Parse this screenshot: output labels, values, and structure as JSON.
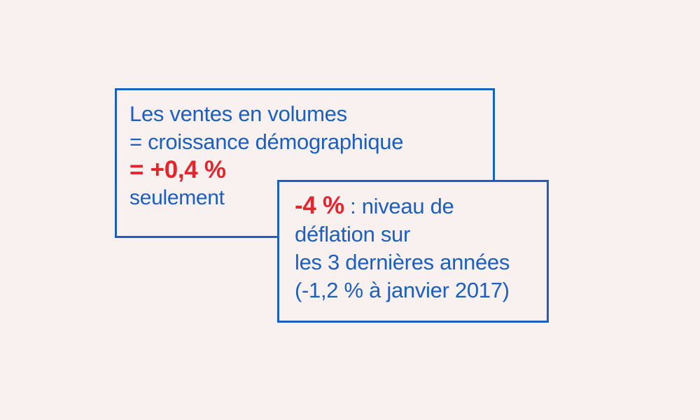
{
  "colors": {
    "background": "#f9f1f0",
    "accent_blue": "#1b5fc3",
    "highlight_red": "#e2262b"
  },
  "box_volumes": {
    "line1": "Les ventes en volumes",
    "line2": "= croissance démographique",
    "highlight": "= +0,4 %",
    "line4": "seulement"
  },
  "box_deflation": {
    "highlight": "-4 %",
    "line1_rest": " : niveau de",
    "line2": "déflation sur",
    "line3": "les 3 dernières années",
    "line4": "(-1,2 % à janvier 2017)"
  }
}
